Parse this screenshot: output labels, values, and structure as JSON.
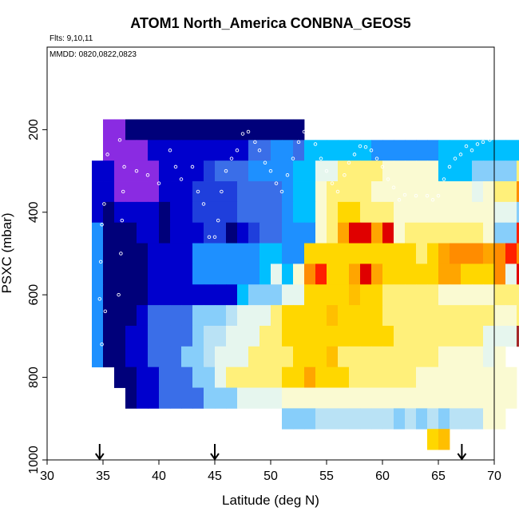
{
  "chart_data": {
    "type": "heatmap",
    "title": "ATOM1 North_America CONBNA_GEOS5",
    "subtitle_flights": "Flts: 9,10,11",
    "annotation_dates": "MMDD: 0820,0822,0823",
    "xlabel": "Latitude (deg N)",
    "ylabel": "PSXC (mbar)",
    "xlim": [
      30,
      70
    ],
    "ylim": [
      1000,
      0
    ],
    "x_ticks": [
      "30",
      "35",
      "40",
      "45",
      "50",
      "55",
      "60",
      "65",
      "70"
    ],
    "y_ticks": [
      "200",
      "400",
      "600",
      "800",
      "1000"
    ],
    "cell_width_deg": 1,
    "cell_height_mbar": 50,
    "arrow_latitudes": [
      34.7,
      45.0,
      67.1
    ],
    "grid": false,
    "colors": {
      "P": "#8a2be2",
      "N": "#00007a",
      "B": "#0000cd",
      "b": "#1f3fdc",
      "M": "#3a6ee8",
      "D": "#1e90ff",
      "S": "#00bfff",
      "L": "#87cefa",
      "l": "#b9e2f5",
      "W": "#e6f6ee",
      "C": "#fafad2",
      "Y": "#fff07a",
      "G": "#ffd700",
      "g": "#ffbf00",
      "O": "#ffa500",
      "o": "#ff8c00",
      "R": "#ff2000",
      "r": "#e00000",
      "K": "#b40000",
      "k": "#a52a2a"
    },
    "rows": [
      {
        "p": 200,
        "lat0": 35,
        "cells": "PPNNNNNNNNNNNNNNNN"
      },
      {
        "p": 250,
        "lat0": 35,
        "cells": "PPPPBBBBBBBBBMMDDMSSSSSSDDDDDDSSSSSSSS"
      },
      {
        "p": 300,
        "lat0": 34,
        "cells": "BBPPPPBBBBbMMMDDDDSSWWYYYYCCCCCSSSLLLLYS"
      },
      {
        "p": 350,
        "lat0": 34,
        "cells": "BBPPPPBBBbbbbMMMMDSSCYYYYCCCCCCCCCWCYYoC"
      },
      {
        "p": 400,
        "lat0": 34,
        "cells": "BNBBBBNBBbbbbMMMMDSSCYGGYYYCCCCCCCCCWWLC"
      },
      {
        "p": 450,
        "lat0": 34,
        "cells": "DNNNBBNBBBbbNBbMMDDDCYOrrOrCYYYYYYYCLLRW"
      },
      {
        "p": 500,
        "lat0": 34,
        "cells": "DNNNNBBBBDDDDDDSSDDGGGGGGGGGGYGOoooOoRo"
      },
      {
        "p": 550,
        "lat0": 34,
        "cells": "DNNNNBBBBDDDDDDSWSCoRGGOrOGGGGGOOGGGoWr"
      },
      {
        "p": 600,
        "lat0": 34,
        "cells": "DNNNNBBBBBBBBSLLLWWGGGGgGGYYYYYCCCCCYYY"
      },
      {
        "p": 650,
        "lat0": 34,
        "cells": "DNNNBMMMMLLLlWWWYGGGGgGGGGYYYYYYYYYYCCY"
      },
      {
        "p": 700,
        "lat0": 34,
        "cells": "DNNBBMMMMLllWWWYYGGGGGGGGGGYYYYYYYYWWWk"
      },
      {
        "p": 750,
        "lat0": 34,
        "cells": "DNNBBMMMLLlWWWYYYYGGGgYYYYYYYYYCCCCWC"
      },
      {
        "p": 800,
        "lat0": 36,
        "cells": "NNBBMMMLLWYYYYYGGOGGGYYYYYYCCCCCCCCC"
      },
      {
        "p": 850,
        "lat0": 37,
        "cells": "NBBMMMMLLLWWWWCCCCCCCCCCCCCCCCCCCCC"
      },
      {
        "p": 900,
        "lat0": 51,
        "cells": "LLLlllllllLlLlLlllCC"
      },
      {
        "p": 950,
        "lat0": 64,
        "cells": "Gg"
      }
    ],
    "flight_track": [
      [
        36.9,
        290
      ],
      [
        36.8,
        350
      ],
      [
        36.7,
        420
      ],
      [
        36.6,
        500
      ],
      [
        36.4,
        600
      ],
      [
        35.2,
        640
      ],
      [
        34.9,
        720
      ],
      [
        34.7,
        610
      ],
      [
        34.8,
        520
      ],
      [
        34.9,
        430
      ],
      [
        35.1,
        380
      ],
      [
        35.4,
        260
      ],
      [
        36.5,
        225
      ],
      [
        38.0,
        300
      ],
      [
        39.0,
        310
      ],
      [
        40.0,
        330
      ],
      [
        41.0,
        250
      ],
      [
        41.5,
        290
      ],
      [
        42.0,
        320
      ],
      [
        43.0,
        290
      ],
      [
        43.5,
        350
      ],
      [
        44.0,
        380
      ],
      [
        44.5,
        460
      ],
      [
        45.0,
        460
      ],
      [
        45.3,
        420
      ],
      [
        45.6,
        350
      ],
      [
        46.0,
        300
      ],
      [
        46.5,
        270
      ],
      [
        47.0,
        250
      ],
      [
        47.5,
        210
      ],
      [
        48.0,
        205
      ],
      [
        48.6,
        230
      ],
      [
        49.0,
        250
      ],
      [
        49.5,
        280
      ],
      [
        50.0,
        300
      ],
      [
        50.5,
        330
      ],
      [
        51.0,
        350
      ],
      [
        51.5,
        310
      ],
      [
        52.0,
        270
      ],
      [
        52.5,
        230
      ],
      [
        53.0,
        205
      ],
      [
        53.5,
        220
      ],
      [
        54.0,
        235
      ],
      [
        54.5,
        270
      ],
      [
        55.0,
        300
      ],
      [
        55.5,
        330
      ],
      [
        56.0,
        350
      ],
      [
        56.6,
        310
      ],
      [
        57.0,
        280
      ],
      [
        57.5,
        260
      ],
      [
        58.0,
        240
      ],
      [
        58.5,
        242
      ],
      [
        59.0,
        250
      ],
      [
        59.5,
        270
      ],
      [
        60.0,
        290
      ],
      [
        60.5,
        320
      ],
      [
        61.0,
        340
      ],
      [
        61.5,
        370
      ],
      [
        62.0,
        358
      ],
      [
        63.0,
        360
      ],
      [
        64.0,
        360
      ],
      [
        64.5,
        370
      ],
      [
        65.0,
        360
      ],
      [
        65.5,
        320
      ],
      [
        66.0,
        290
      ],
      [
        66.5,
        270
      ],
      [
        67.0,
        260
      ],
      [
        67.5,
        240
      ],
      [
        68.0,
        250
      ],
      [
        68.5,
        235
      ],
      [
        69.0,
        230
      ],
      [
        69.6,
        225
      ]
    ]
  }
}
